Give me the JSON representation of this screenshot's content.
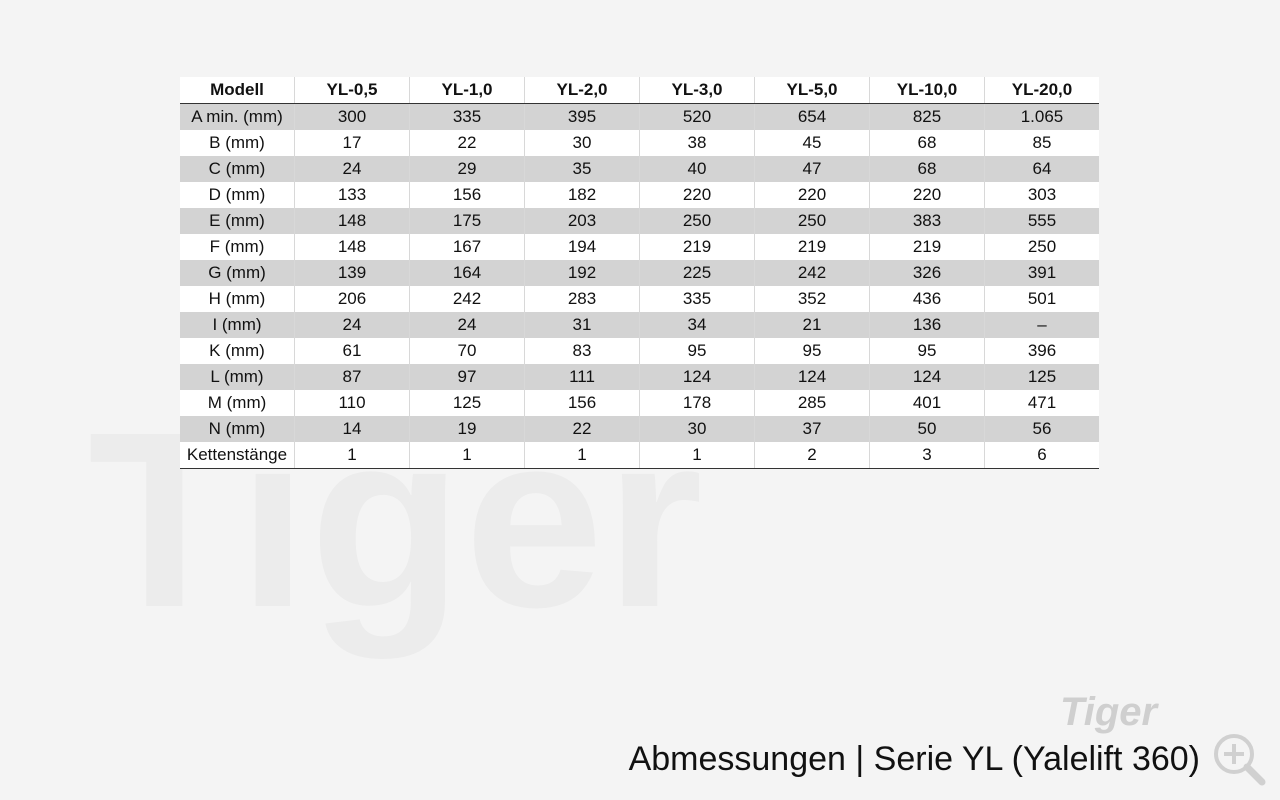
{
  "watermark": "Tiger",
  "logo": "Tiger",
  "table": {
    "header": [
      "Modell",
      "YL-0,5",
      "YL-1,0",
      "YL-2,0",
      "YL-3,0",
      "YL-5,0",
      "YL-10,0",
      "YL-20,0"
    ],
    "rows": [
      [
        "A min. (mm)",
        "300",
        "335",
        "395",
        "520",
        "654",
        "825",
        "1.065"
      ],
      [
        "B (mm)",
        "17",
        "22",
        "30",
        "38",
        "45",
        "68",
        "85"
      ],
      [
        "C (mm)",
        "24",
        "29",
        "35",
        "40",
        "47",
        "68",
        "64"
      ],
      [
        "D (mm)",
        "133",
        "156",
        "182",
        "220",
        "220",
        "220",
        "303"
      ],
      [
        "E (mm)",
        "148",
        "175",
        "203",
        "250",
        "250",
        "383",
        "555"
      ],
      [
        "F (mm)",
        "148",
        "167",
        "194",
        "219",
        "219",
        "219",
        "250"
      ],
      [
        "G (mm)",
        "139",
        "164",
        "192",
        "225",
        "242",
        "326",
        "391"
      ],
      [
        "H (mm)",
        "206",
        "242",
        "283",
        "335",
        "352",
        "436",
        "501"
      ],
      [
        "I (mm)",
        "24",
        "24",
        "31",
        "34",
        "21",
        "136",
        "–"
      ],
      [
        "K (mm)",
        "61",
        "70",
        "83",
        "95",
        "95",
        "95",
        "396"
      ],
      [
        "L (mm)",
        "87",
        "97",
        "111",
        "124",
        "124",
        "124",
        "125"
      ],
      [
        "M (mm)",
        "110",
        "125",
        "156",
        "178",
        "285",
        "401",
        "471"
      ],
      [
        "N (mm)",
        "14",
        "19",
        "22",
        "30",
        "37",
        "50",
        "56"
      ],
      [
        "Kettenstänge",
        "1",
        "1",
        "1",
        "1",
        "2",
        "3",
        "6"
      ]
    ]
  },
  "caption": "Abmessungen | Serie YL (Yalelift 360)"
}
